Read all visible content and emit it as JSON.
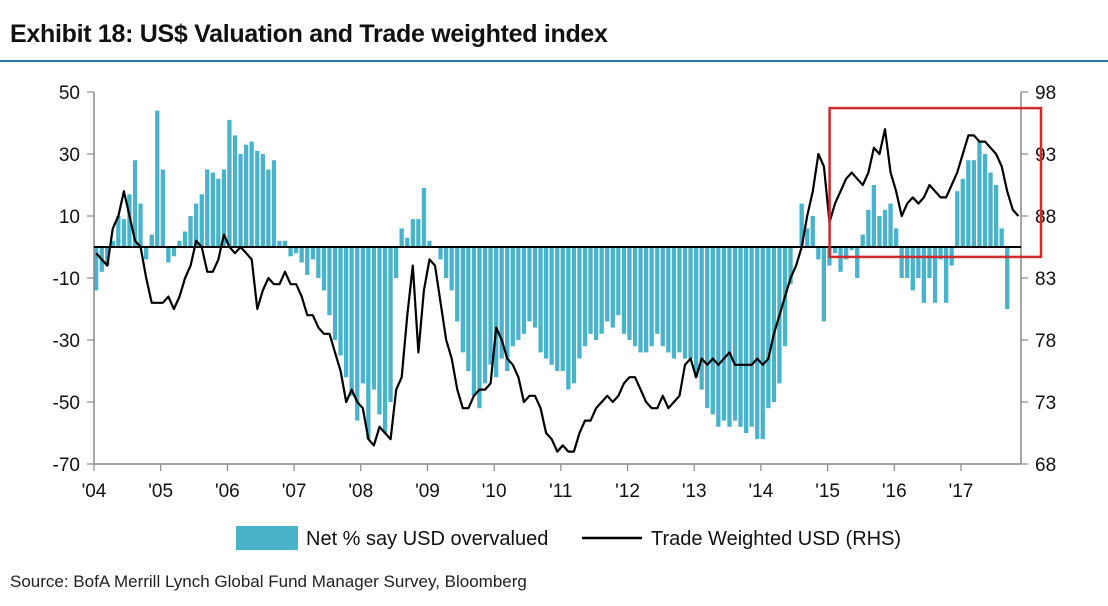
{
  "title": "Exhibit 18: US$ Valuation and Trade weighted index",
  "source": "Source: BofA Merrill Lynch Global Fund Manager Survey, Bloomberg",
  "colors": {
    "bars": "#49b3cb",
    "line": "#000000",
    "highlight": "#d22a2a",
    "title_rule": "#2b6fb3",
    "axis": "#888888"
  },
  "chart_data": {
    "type": "bar+line",
    "title": "Exhibit 18: US$ Valuation and Trade weighted index",
    "x_ticks": [
      "'04",
      "'05",
      "'06",
      "'07",
      "'08",
      "'09",
      "'10",
      "'11",
      "'12",
      "'13",
      "'14",
      "'15",
      "'16",
      "'17"
    ],
    "x_range": [
      2004.0,
      2017.9
    ],
    "y_left": {
      "min": -70,
      "max": 50,
      "ticks": [
        -70,
        -50,
        -30,
        -10,
        10,
        30,
        50
      ]
    },
    "y_right": {
      "min": 68,
      "max": 98,
      "ticks": [
        68,
        73,
        78,
        83,
        88,
        93,
        98
      ]
    },
    "highlight": {
      "x_from": 2015.0,
      "x_to": 2017.9,
      "y_right_from": 84.7,
      "y_right_to": 96.7
    },
    "series": [
      {
        "name": "Net % say USD overvalued",
        "type": "bar",
        "axis": "left",
        "x_start": 2004.0,
        "step": 0.0833,
        "values": [
          -14,
          -8,
          -6,
          2,
          10,
          9,
          17,
          28,
          14,
          -4,
          4,
          44,
          25,
          -5,
          -3,
          2,
          5,
          10,
          14,
          17,
          25,
          24,
          22,
          25,
          41,
          36,
          30,
          33,
          34,
          31,
          30,
          25,
          28,
          2,
          2,
          -3,
          -2,
          -5,
          -9,
          -4,
          -10,
          -14,
          -22,
          -30,
          -35,
          -42,
          -48,
          -56,
          -44,
          -62,
          -46,
          -54,
          -60,
          -50,
          -10,
          6,
          3,
          9,
          9,
          19,
          2,
          0,
          -4,
          -10,
          -14,
          -24,
          -34,
          -40,
          -48,
          -52,
          -44,
          -38,
          -42,
          -36,
          -40,
          -32,
          -30,
          -28,
          -24,
          -26,
          -34,
          -36,
          -38,
          -40,
          -40,
          -46,
          -44,
          -36,
          -32,
          -28,
          -30,
          -28,
          -24,
          -26,
          -22,
          -28,
          -30,
          -32,
          -34,
          -34,
          -32,
          -28,
          -32,
          -34,
          -36,
          -34,
          -36,
          -36,
          -42,
          -46,
          -52,
          -54,
          -58,
          -56,
          -58,
          -56,
          -58,
          -60,
          -58,
          -62,
          -62,
          -52,
          -50,
          -44,
          -32,
          -12,
          0,
          14,
          6,
          10,
          -4,
          -24,
          -6,
          -2,
          -8,
          -4,
          -1,
          -10,
          4,
          12,
          20,
          10,
          12,
          14,
          6,
          -10,
          -10,
          -14,
          -10,
          -18,
          -10,
          -18,
          -4,
          -18,
          -6,
          18,
          22,
          28,
          28,
          34,
          30,
          24,
          20,
          6,
          -20
        ]
      },
      {
        "name": "Trade Weighted USD (RHS)",
        "type": "line",
        "axis": "right",
        "x_start": 2004.0,
        "step": 0.0833,
        "values": [
          85,
          84.5,
          84,
          87,
          88,
          90,
          88,
          86,
          85.5,
          83,
          81,
          81,
          81,
          81.5,
          80.5,
          81.5,
          83,
          84,
          86,
          85.5,
          83.5,
          83.5,
          84.5,
          86.5,
          85.5,
          85,
          85.5,
          85,
          84.5,
          80.5,
          82,
          83,
          82.5,
          82.5,
          83.5,
          82.5,
          82.5,
          81.5,
          80,
          80,
          79,
          78.5,
          78.5,
          77,
          75.5,
          73,
          74,
          73,
          72.5,
          70,
          69.5,
          71,
          70.5,
          70,
          74,
          75,
          80,
          84,
          77,
          82,
          84.5,
          84,
          81,
          78,
          76.5,
          74,
          72.5,
          72.5,
          73.5,
          74,
          74,
          74.5,
          79,
          78,
          76.5,
          76,
          75,
          73,
          73.5,
          73.5,
          72.5,
          70.5,
          70,
          69,
          69.5,
          69,
          69,
          70.5,
          71.5,
          71.5,
          72.5,
          73,
          73.5,
          73,
          73.5,
          74.5,
          75,
          75,
          74,
          73,
          72.5,
          72.5,
          73.5,
          72.5,
          73,
          73.5,
          76,
          76.5,
          75,
          76.5,
          76,
          76.5,
          76,
          76.5,
          77,
          76,
          76,
          76,
          76,
          76.5,
          76,
          76.5,
          78.5,
          80,
          81.5,
          83,
          84,
          85.5,
          88,
          90,
          93,
          92,
          87.5,
          89,
          90,
          91,
          91.5,
          91,
          90.5,
          91.5,
          93.5,
          93,
          95,
          91.5,
          90,
          88,
          89,
          89.5,
          89,
          89.5,
          90.5,
          90,
          89.5,
          89.5,
          90.5,
          91.5,
          93,
          94.5,
          94.5,
          94,
          94,
          93.5,
          93,
          92,
          90,
          88.5,
          88
        ]
      }
    ],
    "legend": [
      {
        "label": "Net % say USD overvalued",
        "kind": "bar"
      },
      {
        "label": "Trade Weighted USD (RHS)",
        "kind": "line"
      }
    ]
  }
}
